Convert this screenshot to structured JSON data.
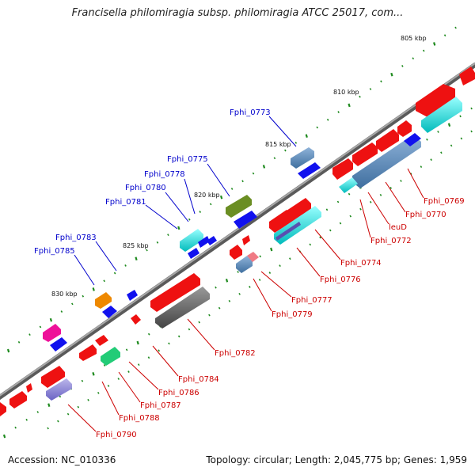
{
  "title": "Francisella philomiragia subsp. philomiragia ATCC 25017, com...",
  "footer": {
    "accession": "Accession: NC_010336",
    "summary": "Topology: circular; Length: 2,045,775 bp; Genes: 1,959"
  },
  "scale_labels": [
    "805 kbp",
    "810 kbp",
    "815 kbp",
    "820 kbp",
    "825 kbp",
    "830 kbp"
  ],
  "forward_gene_labels": [
    "Fphi_0773",
    "Fphi_0775",
    "Fphi_0778",
    "Fphi_0780",
    "Fphi_0781",
    "Fphi_0783",
    "Fphi_0785"
  ],
  "reverse_gene_labels": [
    "Fphi_0769",
    "Fphi_0770",
    "leuD",
    "Fphi_0772",
    "Fphi_0774",
    "Fphi_0776",
    "Fphi_0777",
    "Fphi_0779",
    "Fphi_0782",
    "Fphi_0784",
    "Fphi_0786",
    "Fphi_0787",
    "Fphi_0788",
    "Fphi_0790"
  ],
  "colors": {
    "backbone": "#7a7a7a",
    "tick": "#1e8a1e",
    "forward_label": "#0000cc",
    "reverse_label": "#cc0000",
    "gene_red": "#ee1111",
    "gene_blue": "#1111ee",
    "gene_steel": "#4f7fb0",
    "gene_cyan": "#00c8c8",
    "gene_olive": "#6b8e23",
    "gene_orange": "#ee8800",
    "gene_magenta": "#ee1199",
    "gene_green": "#22cc77",
    "gene_gray": "#666666"
  }
}
